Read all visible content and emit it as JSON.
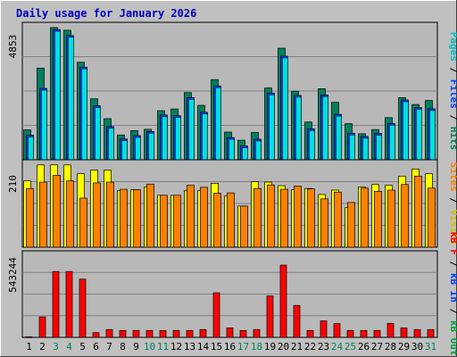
{
  "title": "Daily usage for January 2026",
  "colors": {
    "background": "#c0c0c0",
    "plot_bg": "#b8b8b8",
    "hits": "#00805c",
    "files": "#0040ff",
    "pages": "#00e0e0",
    "visits": "#ffff00",
    "sites": "#ff8000",
    "kb_in": "#ff0000",
    "title_text": "#0000c0"
  },
  "right_labels": {
    "top": [
      {
        "text": "Pages",
        "color": "#00c0c0"
      },
      {
        "text": " / ",
        "color": "#000000"
      },
      {
        "text": "Files",
        "color": "#0040ff"
      },
      {
        "text": " / ",
        "color": "#000000"
      },
      {
        "text": "Hits",
        "color": "#00805c"
      }
    ],
    "middle": [
      {
        "text": "Sites",
        "color": "#ff8000"
      },
      {
        "text": " / ",
        "color": "#000000"
      },
      {
        "text": "Visits",
        "color": "#d0c000"
      }
    ],
    "bottom": [
      {
        "text": "kB F",
        "color": "#ff0000"
      },
      {
        "text": " / ",
        "color": "#000000"
      },
      {
        "text": "kB In",
        "color": "#0040ff"
      },
      {
        "text": " / ",
        "color": "#000000"
      },
      {
        "text": "kB Out",
        "color": "#00a040"
      }
    ]
  },
  "chart_data": [
    {
      "type": "bar",
      "panel": "top",
      "y_max_label": "4853",
      "ylim": [
        0,
        4853
      ],
      "x": [
        "1",
        "2",
        "3",
        "4",
        "5",
        "6",
        "7",
        "8",
        "9",
        "10",
        "11",
        "12",
        "13",
        "14",
        "15",
        "16",
        "17",
        "18",
        "19",
        "20",
        "21",
        "22",
        "23",
        "24",
        "25",
        "26",
        "27",
        "28",
        "29",
        "30",
        "31"
      ],
      "series": [
        {
          "name": "Hits",
          "values": [
            1085,
            3324,
            4791,
            4694,
            3535,
            2209,
            1489,
            898,
            1056,
            1104,
            1778,
            1841,
            2436,
            1973,
            2904,
            1004,
            709,
            989,
            2603,
            4044,
            2485,
            1368,
            2577,
            2082,
            1309,
            943,
            1095,
            1527,
            2253,
            2003,
            2148
          ]
        },
        {
          "name": "Files",
          "values": [
            890,
            2587,
            4720,
            4503,
            3357,
            1956,
            1201,
            754,
            874,
            1024,
            1621,
            1597,
            2249,
            1723,
            2676,
            803,
            499,
            743,
            2418,
            3754,
            2332,
            1120,
            2350,
            1646,
            961,
            844,
            957,
            1317,
            2167,
            1894,
            1848
          ]
        },
        {
          "name": "Pages",
          "values": [
            890,
            2587,
            4720,
            4503,
            3357,
            1956,
            1201,
            754,
            874,
            1024,
            1621,
            1597,
            2249,
            1723,
            2676,
            803,
            499,
            743,
            2418,
            3754,
            2332,
            1120,
            2350,
            1646,
            961,
            844,
            957,
            1317,
            2167,
            1894,
            1848
          ]
        }
      ]
    },
    {
      "type": "bar",
      "panel": "middle",
      "y_max_label": "210",
      "ylim": [
        0,
        210
      ],
      "x": [
        "1",
        "2",
        "3",
        "4",
        "5",
        "6",
        "7",
        "8",
        "9",
        "10",
        "11",
        "12",
        "13",
        "14",
        "15",
        "16",
        "17",
        "18",
        "19",
        "20",
        "21",
        "22",
        "23",
        "24",
        "25",
        "26",
        "27",
        "28",
        "29",
        "30",
        "31"
      ],
      "series": [
        {
          "name": "Visits",
          "values": [
            166,
            206,
            206,
            206,
            184,
            193,
            193,
            142,
            144,
            151,
            130,
            130,
            142,
            142,
            160,
            128,
            103,
            164,
            163,
            154,
            144,
            147,
            132,
            143,
            99,
            151,
            157,
            155,
            178,
            196,
            184
          ]
        },
        {
          "name": "Sites",
          "values": [
            147,
            163,
            180,
            166,
            123,
            161,
            163,
            145,
            144,
            158,
            130,
            130,
            155,
            150,
            135,
            136,
            103,
            147,
            156,
            145,
            153,
            146,
            121,
            138,
            112,
            148,
            140,
            143,
            157,
            178,
            148
          ]
        }
      ]
    },
    {
      "type": "bar",
      "panel": "bottom",
      "y_max_label": "543244",
      "ylim": [
        0,
        543244
      ],
      "x": [
        "1",
        "2",
        "3",
        "4",
        "5",
        "6",
        "7",
        "8",
        "9",
        "10",
        "11",
        "12",
        "13",
        "14",
        "15",
        "16",
        "17",
        "18",
        "19",
        "20",
        "21",
        "22",
        "23",
        "24",
        "25",
        "26",
        "27",
        "28",
        "29",
        "30",
        "31"
      ],
      "series": [
        {
          "name": "kB F",
          "values": [
            4000,
            134000,
            431000,
            431000,
            381000,
            31000,
            51000,
            45000,
            45000,
            45000,
            45000,
            45000,
            45000,
            51000,
            292000,
            62000,
            45000,
            51000,
            271000,
            473000,
            209000,
            45000,
            108000,
            90000,
            45000,
            45000,
            45000,
            92000,
            62000,
            51000,
            51000
          ]
        }
      ]
    }
  ],
  "x_label_colors": [
    "#000000",
    "#000000",
    "#00805c",
    "#00805c",
    "#000000",
    "#000000",
    "#000000",
    "#000000",
    "#000000",
    "#00805c",
    "#00805c",
    "#000000",
    "#000000",
    "#000000",
    "#000000",
    "#000000",
    "#00805c",
    "#00805c",
    "#000000",
    "#000000",
    "#000000",
    "#000000",
    "#000000",
    "#00805c",
    "#00805c",
    "#000000",
    "#000000",
    "#000000",
    "#000000",
    "#000000",
    "#00805c"
  ]
}
